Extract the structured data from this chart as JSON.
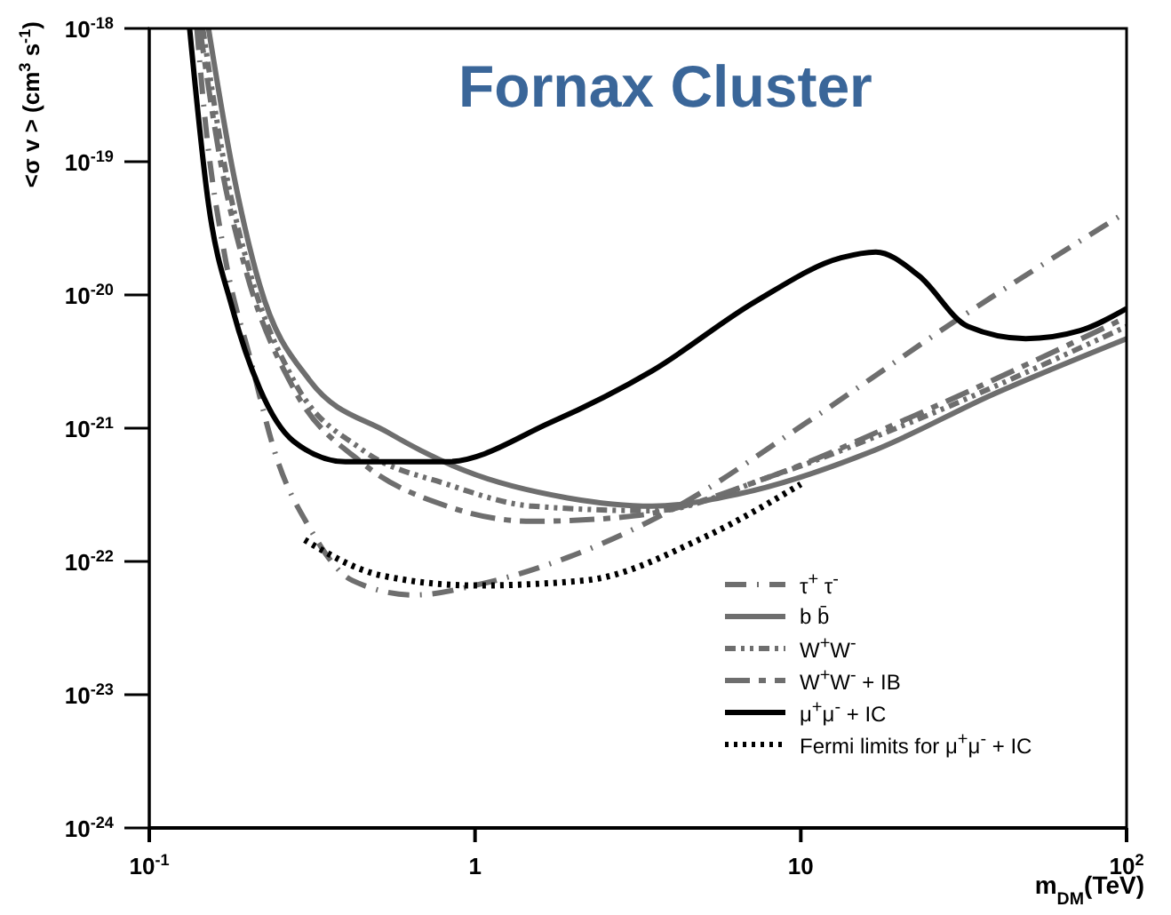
{
  "chart_data": {
    "type": "line",
    "title": "Fornax Cluster",
    "xlabel": "m$_{DM}$(TeV)",
    "ylabel": "<σ v > (cm$^{3}$ s$^{-1}$)",
    "log": "xy",
    "xlim": [
      0.1,
      100
    ],
    "ylim": [
      1e-24,
      1e-18
    ],
    "xticks": [
      {
        "value": 0.1,
        "label": "10$^{-1}$"
      },
      1,
      10,
      {
        "value": 100,
        "label": "10$^{2}$"
      }
    ],
    "yticks": [
      {
        "value": 1e-24,
        "label": "10$^{-24}$"
      },
      {
        "value": 1e-23,
        "label": "10$^{-23}$"
      },
      {
        "value": 1e-22,
        "label": "10$^{-22}$"
      },
      {
        "value": 1e-21,
        "label": "10$^{-21}$"
      },
      {
        "value": 1e-20,
        "label": "10$^{-20}$"
      },
      {
        "value": 1e-19,
        "label": "10$^{-19}$"
      },
      {
        "value": 1e-18,
        "label": "10$^{-18}$"
      }
    ],
    "grid": false,
    "legend": "bottom right",
    "marker": "none",
    "series": [
      {
        "name": "τ$^{+}$ τ$^{-}$",
        "color": "#6e6e6e",
        "line_style": "dashdot",
        "x": [
          0.14,
          0.148,
          0.171,
          0.205,
          0.246,
          0.31,
          0.42,
          0.65,
          1.05,
          1.92,
          3.96,
          10.4,
          31,
          100
        ],
        "values": [
          1e-18,
          2.2e-19,
          1.9e-20,
          3.2e-21,
          6e-22,
          1.8e-22,
          7.2e-23,
          5.6e-23,
          6.8e-23,
          1.07e-22,
          2.4e-22,
          1.1e-21,
          6.8e-21,
          4.2e-20
        ]
      },
      {
        "name": "b b̄",
        "color": "#6e6e6e",
        "line_style": "solid",
        "x": [
          0.152,
          0.18,
          0.218,
          0.31,
          0.54,
          0.93,
          1.92,
          3.5,
          6.4,
          17,
          39,
          100
        ],
        "values": [
          1e-18,
          8.9e-20,
          1.2e-20,
          2.3e-21,
          9.3e-22,
          4.8e-22,
          3e-22,
          2.6e-22,
          3.2e-22,
          6.9e-22,
          1.8e-21,
          4.7e-21
        ]
      },
      {
        "name": "W$^{+}$W$^{-}$",
        "color": "#6e6e6e",
        "line_style": "dashdotdot",
        "x": [
          0.146,
          0.171,
          0.205,
          0.277,
          0.45,
          0.82,
          1.5,
          3.5,
          8.2,
          21.6,
          100
        ],
        "values": [
          1e-18,
          8.9e-20,
          1.4e-20,
          2.3e-21,
          6.9e-22,
          3.8e-22,
          2.6e-22,
          2.4e-22,
          4.4e-22,
          1.1e-21,
          5.8e-21
        ]
      },
      {
        "name": "W$^{+}$W$^{-}$ + IB",
        "color": "#6e6e6e",
        "line_style": "dashed",
        "x": [
          0.143,
          0.167,
          0.2,
          0.277,
          0.45,
          0.82,
          1.5,
          3.1,
          8.2,
          21.6,
          100
        ],
        "values": [
          1e-18,
          8.9e-20,
          1.4e-20,
          2e-21,
          5.5e-22,
          2.6e-22,
          2e-22,
          2.2e-22,
          4.4e-22,
          1.2e-21,
          6.8e-21
        ]
      },
      {
        "name": "μ$^{+}$μ$^{-}$ + IC",
        "color": "#000000",
        "line_style": "solid",
        "x": [
          0.133,
          0.152,
          0.18,
          0.218,
          0.277,
          0.4,
          0.82,
          1.7,
          3.5,
          7.3,
          13.3,
          17,
          23,
          32.6,
          49,
          72,
          100
        ],
        "values": [
          1e-18,
          4.8e-20,
          7.9e-21,
          2e-21,
          8e-22,
          5.6e-22,
          5.6e-22,
          1.1e-21,
          2.7e-21,
          9e-21,
          1.9e-20,
          2.1e-20,
          1.4e-20,
          5.8e-21,
          4.7e-21,
          5.4e-21,
          7.9e-21
        ]
      },
      {
        "name": "Fermi limits for μ$^{+}$μ$^{-}$ + IC",
        "color": "#000000",
        "line_style": "dotted",
        "x": [
          0.3,
          0.51,
          1,
          2.17,
          5,
          10
        ],
        "values": [
          1.45e-22,
          7.9e-23,
          6.6e-23,
          7.2e-23,
          1.5e-22,
          3.8e-22
        ]
      }
    ]
  }
}
